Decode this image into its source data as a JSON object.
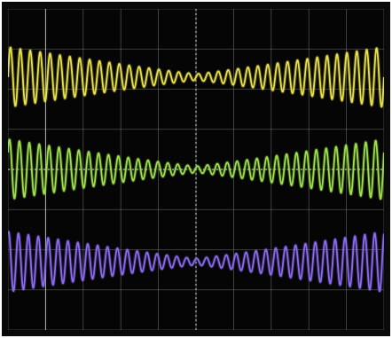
{
  "chart_data": {
    "type": "line",
    "title": "",
    "xlabel": "",
    "ylabel": "",
    "grid": true,
    "grid_divisions": {
      "x": 10,
      "y": 8
    },
    "x": {
      "start": 0,
      "end": 10,
      "unit": "div"
    },
    "ylim": [
      -4,
      4
    ],
    "series": [
      {
        "color": "#e8e04a",
        "center": 2.3,
        "amplitude_edge": 0.75,
        "amplitude_min": 0.08,
        "cycles": 38
      },
      {
        "color": "#9be04a",
        "center": 0.0,
        "amplitude_edge": 0.75,
        "amplitude_min": 0.08,
        "cycles": 38
      },
      {
        "color": "#8a6af0",
        "center": -2.3,
        "amplitude_edge": 0.75,
        "amplitude_min": 0.08,
        "cycles": 38
      }
    ]
  },
  "colors": {
    "background": "#050505",
    "grid": "#8a8a8a",
    "border": "#0a0a0a"
  }
}
